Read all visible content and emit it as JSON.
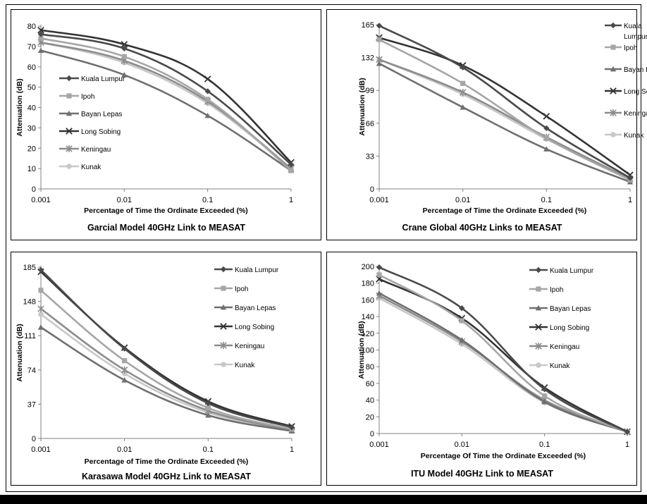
{
  "colors": {
    "Kuala Lumpur": "#4a4a4a",
    "Ipoh": "#a6a6a6",
    "Bayan Lepas": "#6f6f6f",
    "Long Sobing": "#333333",
    "Keningau": "#8c8c8c",
    "Kunak": "#c8c8c8"
  },
  "markers": {
    "Kuala Lumpur": "diamond",
    "Ipoh": "square",
    "Bayan Lepas": "triangle",
    "Long Sobing": "x",
    "Keningau": "star",
    "Kunak": "circle"
  },
  "chart_data": [
    {
      "type": "line",
      "title": "Garcial Model 40GHz Link to MEASAT",
      "xlabel": "Percentage of Time the Ordinate Exceeded (%)",
      "ylabel": "Attenuation (dB)",
      "x": [
        "0.001",
        "0.01",
        "0.1",
        "1"
      ],
      "x_scale": "log",
      "ylim": [
        0,
        80
      ],
      "yticks": [
        0,
        10,
        20,
        30,
        40,
        50,
        60,
        70,
        80
      ],
      "legend_position": "left-middle",
      "series": [
        {
          "name": "Kuala Lumpur",
          "values": [
            76,
            69,
            48,
            12
          ]
        },
        {
          "name": "Ipoh",
          "values": [
            74,
            65,
            44,
            9
          ]
        },
        {
          "name": "Bayan Lepas",
          "values": [
            68,
            56,
            36,
            9
          ]
        },
        {
          "name": "Long Sobing",
          "values": [
            78,
            71,
            54,
            13
          ]
        },
        {
          "name": "Keningau",
          "values": [
            72,
            63,
            43,
            10
          ]
        },
        {
          "name": "Kunak",
          "values": [
            72,
            62,
            42,
            10
          ]
        }
      ]
    },
    {
      "type": "line",
      "title": "Crane Global 40GHz Links to MEASAT",
      "xlabel": "Percentage of Time the Ordinate Exceeded (%)",
      "ylabel": "Attenuation (dB)",
      "x": [
        "0.001",
        "0.01",
        "0.1",
        "1"
      ],
      "x_scale": "log",
      "ylim": [
        0,
        165
      ],
      "yticks": [
        0,
        33,
        66,
        99,
        132,
        165
      ],
      "legend_position": "right",
      "series": [
        {
          "name": "Kuala Lumpur",
          "values": [
            164,
            122,
            61,
            11
          ]
        },
        {
          "name": "Ipoh",
          "values": [
            150,
            106,
            51,
            9
          ]
        },
        {
          "name": "Bayan Lepas",
          "values": [
            126,
            82,
            40,
            7
          ]
        },
        {
          "name": "Long Sobing",
          "values": [
            152,
            124,
            73,
            14
          ]
        },
        {
          "name": "Keningau",
          "values": [
            130,
            97,
            52,
            10
          ]
        },
        {
          "name": "Kunak",
          "values": [
            130,
            95,
            50,
            10
          ]
        }
      ]
    },
    {
      "type": "line",
      "title": "Karasawa Model 40GHz Link to MEASAT",
      "xlabel": "Percentage of Time the Ordinate Exceeded (%)",
      "ylabel": "Attenuation (dB)",
      "x": [
        "0.001",
        "0.01",
        "0.1",
        "1"
      ],
      "x_scale": "log",
      "ylim": [
        0,
        185
      ],
      "yticks": [
        0,
        37,
        74,
        111,
        148,
        185
      ],
      "legend_position": "right",
      "series": [
        {
          "name": "Kuala Lumpur",
          "values": [
            182,
            97,
            38,
            12
          ]
        },
        {
          "name": "Ipoh",
          "values": [
            160,
            84,
            33,
            10
          ]
        },
        {
          "name": "Bayan Lepas",
          "values": [
            120,
            63,
            25,
            8
          ]
        },
        {
          "name": "Long Sobing",
          "values": [
            180,
            98,
            40,
            13
          ]
        },
        {
          "name": "Keningau",
          "values": [
            140,
            74,
            30,
            9
          ]
        },
        {
          "name": "Kunak",
          "values": [
            134,
            70,
            28,
            9
          ]
        }
      ]
    },
    {
      "type": "line",
      "title": "ITU Model 40GHz Link to MEASAT",
      "xlabel": "Percentage Of Time the Ordinate Exceeded (%)",
      "ylabel": "Attenuation (dB)",
      "x": [
        "0.001",
        "0.01",
        "0.1",
        "1"
      ],
      "x_scale": "log",
      "ylim": [
        0,
        200
      ],
      "yticks": [
        0,
        20,
        40,
        60,
        80,
        100,
        120,
        140,
        160,
        180,
        200
      ],
      "legend_position": "right",
      "series": [
        {
          "name": "Kuala Lumpur",
          "values": [
            199,
            150,
            53,
            2
          ]
        },
        {
          "name": "Ipoh",
          "values": [
            190,
            135,
            45,
            2
          ]
        },
        {
          "name": "Bayan Lepas",
          "values": [
            168,
            112,
            38,
            2
          ]
        },
        {
          "name": "Long Sobing",
          "values": [
            185,
            138,
            55,
            2
          ]
        },
        {
          "name": "Keningau",
          "values": [
            165,
            110,
            40,
            2
          ]
        },
        {
          "name": "Kunak",
          "values": [
            162,
            107,
            37,
            2
          ]
        }
      ]
    }
  ]
}
